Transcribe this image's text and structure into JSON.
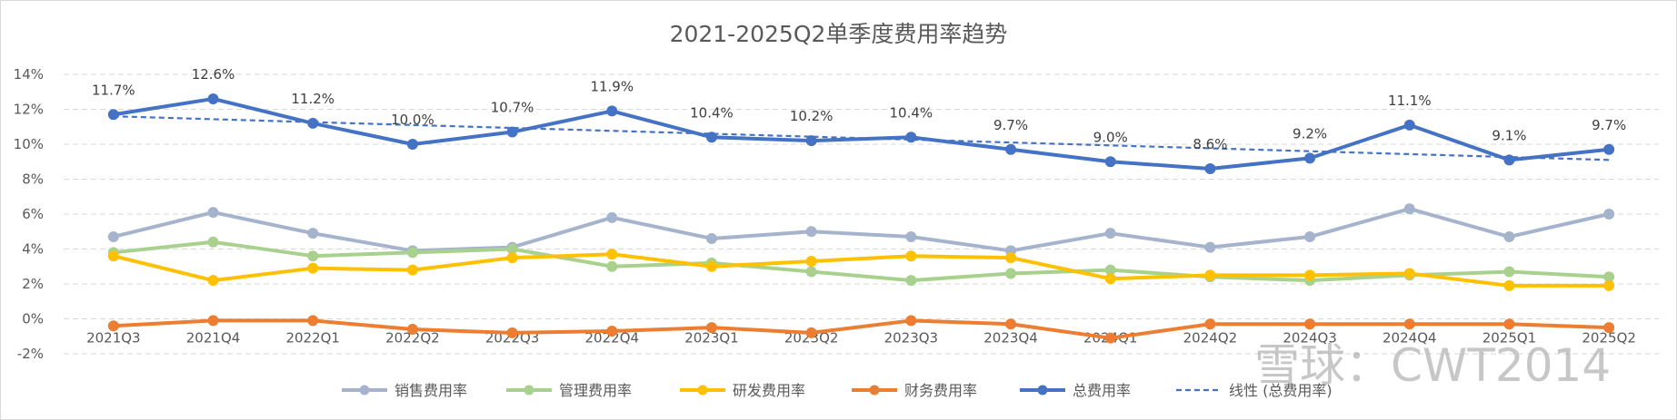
{
  "chart_data": {
    "type": "line",
    "title": "2021-2025Q2单季度费用率趋势",
    "categories": [
      "2021Q3",
      "2021Q4",
      "2022Q1",
      "2022Q2",
      "2022Q3",
      "2022Q4",
      "2023Q1",
      "2023Q2",
      "2023Q3",
      "2023Q4",
      "2024Q1",
      "2024Q2",
      "2024Q3",
      "2024Q4",
      "2025Q1",
      "2025Q2"
    ],
    "ylim": [
      -2,
      14
    ],
    "yticks": [
      -2,
      0,
      2,
      4,
      6,
      8,
      10,
      12,
      14
    ],
    "ytick_labels": [
      "-2%",
      "0%",
      "2%",
      "4%",
      "6%",
      "8%",
      "10%",
      "12%",
      "14%"
    ],
    "grid": true,
    "legend_position": "bottom",
    "series": [
      {
        "name": "销售费用率",
        "color": "#a5b4cc",
        "values": [
          4.7,
          6.1,
          4.9,
          3.9,
          4.1,
          5.8,
          4.6,
          5.0,
          4.7,
          3.9,
          4.9,
          4.1,
          4.7,
          6.3,
          4.7,
          6.0
        ]
      },
      {
        "name": "管理费用率",
        "color": "#a9d18e",
        "values": [
          3.8,
          4.4,
          3.6,
          3.8,
          4.0,
          3.0,
          3.2,
          2.7,
          2.2,
          2.6,
          2.8,
          2.4,
          2.2,
          2.5,
          2.7,
          2.4
        ]
      },
      {
        "name": "研发费用率",
        "color": "#ffc000",
        "values": [
          3.6,
          2.2,
          2.9,
          2.8,
          3.5,
          3.7,
          3.0,
          3.3,
          3.6,
          3.5,
          2.3,
          2.5,
          2.5,
          2.6,
          1.9,
          1.9
        ]
      },
      {
        "name": "财务费用率",
        "color": "#ed7d31",
        "values": [
          -0.4,
          -0.1,
          -0.1,
          -0.6,
          -0.8,
          -0.7,
          -0.5,
          -0.8,
          -0.1,
          -0.3,
          -1.1,
          -0.3,
          -0.3,
          -0.3,
          -0.3,
          -0.5
        ]
      },
      {
        "name": "总费用率",
        "color": "#4472c4",
        "values": [
          11.7,
          12.6,
          11.2,
          10.0,
          10.7,
          11.9,
          10.4,
          10.2,
          10.4,
          9.7,
          9.0,
          8.6,
          9.2,
          11.1,
          9.1,
          9.7
        ],
        "labels": [
          "11.7%",
          "12.6%",
          "11.2%",
          "10.0%",
          "10.7%",
          "11.9%",
          "10.4%",
          "10.2%",
          "10.4%",
          "9.7%",
          "9.0%",
          "8.6%",
          "9.2%",
          "11.1%",
          "9.1%",
          "9.7%"
        ]
      }
    ],
    "trendline": {
      "name": "线性 (总费用率)",
      "color": "#4472c4",
      "start": 11.6,
      "end": 9.1
    }
  },
  "watermark": "雪球：CWT2014"
}
